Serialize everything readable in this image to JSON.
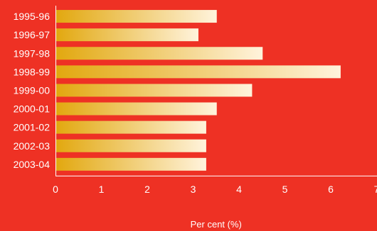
{
  "chart_data": {
    "type": "bar",
    "orientation": "horizontal",
    "categories": [
      "1995-96",
      "1996-97",
      "1997-98",
      "1998-99",
      "1999-00",
      "2000-01",
      "2001-02",
      "2002-03",
      "2003-04"
    ],
    "values": [
      3.5,
      3.1,
      4.5,
      6.2,
      4.27,
      3.5,
      3.27,
      3.27,
      3.27
    ],
    "xlabel": "Per cent (%)",
    "ylabel": "",
    "xlim": [
      0,
      7
    ],
    "xticks": [
      "0",
      "1",
      "2",
      "3",
      "4",
      "5",
      "6",
      "7"
    ],
    "grid": false,
    "colors": {
      "background": "#ee3124",
      "bar_start": "#e2a80f",
      "bar_end": "#fff3dc",
      "axis": "#ffffff",
      "text": "#ffffff"
    }
  }
}
